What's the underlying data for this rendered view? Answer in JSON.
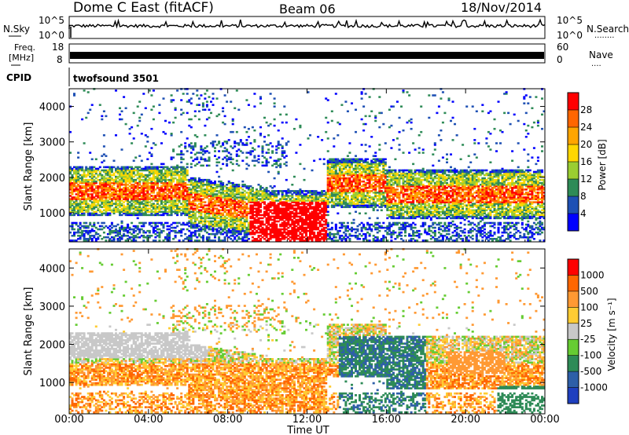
{
  "header": {
    "station": "Dome C East (fitACF)",
    "beam": "Beam 06",
    "date": "18/Nov/2014"
  },
  "status_panels": {
    "nsky": {
      "label": "N.Sky",
      "right_label": "N.Search",
      "right_marker": "........",
      "left_ticks": [
        "10^5",
        "10^0"
      ],
      "right_ticks": [
        "10^5",
        "10^0"
      ]
    },
    "freq": {
      "label_line1": "Freq.",
      "label_line2": "[MHz]",
      "left_ticks": [
        "18",
        "8"
      ],
      "right_label": "Nave",
      "right_marker": "....",
      "right_ticks": [
        "60",
        "0"
      ]
    },
    "cpid": {
      "label": "CPID",
      "text": "twofsound 3501"
    }
  },
  "colors": {
    "power_scale": [
      "#0000ff",
      "#1e50b4",
      "#2e8b57",
      "#9acd32",
      "#ffd700",
      "#ffa500",
      "#ff6600",
      "#ff0000"
    ],
    "velocity_scale": [
      "#1f3fbf",
      "#2e5fa8",
      "#2e8b57",
      "#66cc33",
      "#c8c8c8",
      "#ffcc33",
      "#ff9933",
      "#ff6600",
      "#ff0000"
    ],
    "ground_scatter": "#c8c8c8"
  },
  "chart_data": [
    {
      "type": "heatmap",
      "name": "Power",
      "xlabel": "",
      "ylabel": "Slant Range [km]",
      "x_range": [
        "00:00",
        "24:00"
      ],
      "ylim": [
        180,
        4500
      ],
      "y_ticks": [
        1000,
        2000,
        3000,
        4000
      ],
      "colorbar": {
        "label": "Power [dB]",
        "range": [
          0,
          32
        ],
        "ticks": [
          4,
          8,
          12,
          16,
          20,
          24,
          28
        ]
      }
    },
    {
      "type": "heatmap",
      "name": "Velocity",
      "xlabel": "Time UT",
      "ylabel": "Slant Range [km]",
      "x_ticks": [
        "00:00",
        "04:00",
        "08:00",
        "12:00",
        "16:00",
        "20:00",
        "00:00"
      ],
      "ylim": [
        180,
        4500
      ],
      "y_ticks": [
        1000,
        2000,
        3000,
        4000
      ],
      "colorbar": {
        "label": "Velocity [m s⁻¹]",
        "ticks": [
          "1000",
          "500",
          "100",
          "25",
          "-25",
          "-100",
          "-500",
          "-1000"
        ]
      }
    }
  ]
}
